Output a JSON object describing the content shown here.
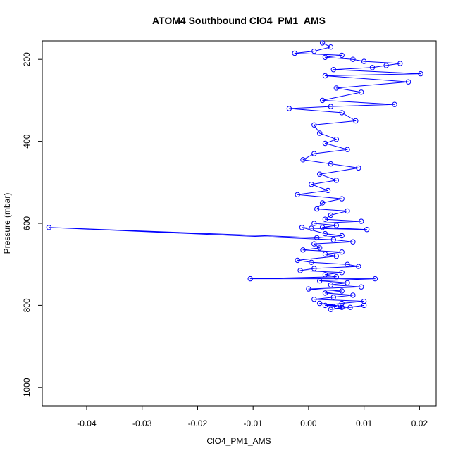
{
  "chart_data": {
    "type": "line",
    "title": "ATOM4 Southbound ClO4_PM1_AMS",
    "xlabel": "ClO4_PM1_AMS",
    "ylabel": "Pressure (mbar)",
    "xlim": [
      -0.048,
      0.023
    ],
    "ylim": [
      1045,
      155
    ],
    "x_ticks": [
      -0.04,
      -0.03,
      -0.02,
      -0.01,
      0.0,
      0.01,
      0.02
    ],
    "x_tick_labels": [
      "-0.04",
      "-0.03",
      "-0.02",
      "-0.01",
      "0.00",
      "0.01",
      "0.02"
    ],
    "y_ticks": [
      200,
      400,
      600,
      800,
      1000
    ],
    "y_tick_labels": [
      "200",
      "400",
      "600",
      "800",
      "1000"
    ],
    "grid": false,
    "legend": "none",
    "series": [
      {
        "name": "ClO4_PM1_AMS",
        "color": "#0000ff",
        "style": "line+open-circle",
        "x": [
          0.0025,
          0.004,
          0.001,
          -0.0025,
          0.006,
          0.003,
          0.008,
          0.01,
          0.0165,
          0.014,
          0.0115,
          0.0045,
          0.0202,
          0.003,
          0.018,
          0.005,
          0.0095,
          0.0025,
          0.0155,
          0.004,
          -0.0035,
          0.006,
          0.0085,
          0.001,
          0.002,
          0.005,
          0.003,
          0.007,
          0.001,
          -0.001,
          0.004,
          0.009,
          0.002,
          0.005,
          0.0005,
          0.0035,
          -0.002,
          0.006,
          0.0025,
          0.0015,
          0.007,
          0.004,
          0.003,
          0.0095,
          0.001,
          0.005,
          0.0025,
          0.0105,
          0.0005,
          -0.0012,
          0.003,
          0.006,
          0.0015,
          -0.0468,
          0.0045,
          0.008,
          0.001,
          0.002,
          -0.001,
          0.006,
          0.003,
          0.005,
          -0.002,
          0.0005,
          0.007,
          0.009,
          0.001,
          -0.0015,
          0.006,
          0.003,
          0.005,
          -0.0105,
          0.012,
          0.002,
          0.007,
          0.004,
          0.0095,
          0.0,
          0.006,
          0.003,
          0.008,
          0.0045,
          0.001,
          0.01,
          0.006,
          0.003,
          0.005,
          0.002,
          0.0075,
          0.01,
          0.004,
          0.006
        ],
        "y": [
          160,
          170,
          180,
          185,
          190,
          195,
          200,
          205,
          210,
          215,
          220,
          225,
          235,
          240,
          255,
          270,
          280,
          300,
          310,
          315,
          320,
          330,
          350,
          360,
          380,
          395,
          405,
          420,
          430,
          445,
          455,
          465,
          480,
          495,
          505,
          520,
          530,
          540,
          550,
          565,
          570,
          580,
          590,
          595,
          600,
          605,
          610,
          615,
          612,
          610,
          625,
          630,
          635,
          610,
          640,
          645,
          650,
          660,
          665,
          670,
          675,
          680,
          690,
          695,
          700,
          705,
          710,
          715,
          720,
          725,
          730,
          735,
          735,
          740,
          745,
          750,
          755,
          760,
          765,
          770,
          775,
          780,
          785,
          790,
          795,
          800,
          802,
          795,
          805,
          800,
          810,
          805
        ]
      }
    ]
  }
}
